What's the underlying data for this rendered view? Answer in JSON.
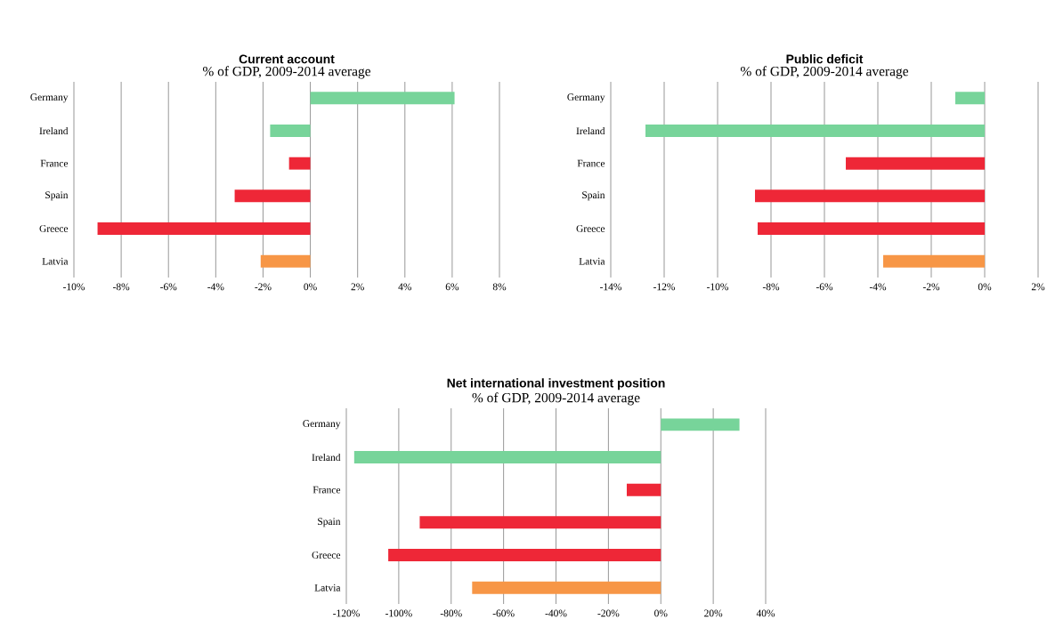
{
  "chart_data": [
    {
      "type": "bar",
      "orientation": "horizontal",
      "title": "Current account",
      "subtitle": "% of GDP, 2009-2014 average",
      "categories": [
        "Germany",
        "Ireland",
        "France",
        "Spain",
        "Greece",
        "Latvia"
      ],
      "values": [
        6.1,
        -1.7,
        -0.9,
        -3.2,
        -9.0,
        -2.1
      ],
      "colors": [
        "#77d49a",
        "#77d49a",
        "#ee2737",
        "#ee2737",
        "#ee2737",
        "#f79646"
      ],
      "xlim": [
        -10,
        8
      ],
      "xticks": [
        {
          "value": -10,
          "label": "-10%"
        },
        {
          "value": -8,
          "label": "-8%"
        },
        {
          "value": -6,
          "label": "-6%"
        },
        {
          "value": -4,
          "label": "-4%"
        },
        {
          "value": -2,
          "label": "-2%"
        },
        {
          "value": 0,
          "label": "0%"
        },
        {
          "value": 2,
          "label": "2%"
        },
        {
          "value": 4,
          "label": "4%"
        },
        {
          "value": 6,
          "label": "6%"
        },
        {
          "value": 8,
          "label": "8%"
        }
      ],
      "grid": "x"
    },
    {
      "type": "bar",
      "orientation": "horizontal",
      "title": "Public deficit",
      "subtitle": "% of GDP, 2009-2014 average",
      "categories": [
        "Germany",
        "Ireland",
        "France",
        "Spain",
        "Greece",
        "Latvia"
      ],
      "values": [
        -1.1,
        -12.7,
        -5.2,
        -8.6,
        -8.5,
        -3.8
      ],
      "colors": [
        "#77d49a",
        "#77d49a",
        "#ee2737",
        "#ee2737",
        "#ee2737",
        "#f79646"
      ],
      "xlim": [
        -14,
        2
      ],
      "xticks": [
        {
          "value": -14,
          "label": "-14%"
        },
        {
          "value": -12,
          "label": "-12%"
        },
        {
          "value": -10,
          "label": "-10%"
        },
        {
          "value": -8,
          "label": "-8%"
        },
        {
          "value": -6,
          "label": "-6%"
        },
        {
          "value": -4,
          "label": "-4%"
        },
        {
          "value": -2,
          "label": "-2%"
        },
        {
          "value": 0,
          "label": "0%"
        },
        {
          "value": 2,
          "label": "2%"
        }
      ],
      "grid": "x"
    },
    {
      "type": "bar",
      "orientation": "horizontal",
      "title": "Net international investment position",
      "subtitle": "% of GDP, 2009-2014 average",
      "categories": [
        "Germany",
        "Ireland",
        "France",
        "Spain",
        "Greece",
        "Latvia"
      ],
      "values": [
        30,
        -117,
        -13,
        -92,
        -104,
        -72
      ],
      "colors": [
        "#77d49a",
        "#77d49a",
        "#ee2737",
        "#ee2737",
        "#ee2737",
        "#f79646"
      ],
      "xlim": [
        -120,
        40
      ],
      "xticks": [
        {
          "value": -120,
          "label": "-120%"
        },
        {
          "value": -100,
          "label": "-100%"
        },
        {
          "value": -80,
          "label": "-80%"
        },
        {
          "value": -60,
          "label": "-60%"
        },
        {
          "value": -40,
          "label": "-40%"
        },
        {
          "value": -20,
          "label": "-20%"
        },
        {
          "value": 0,
          "label": "0%"
        },
        {
          "value": 20,
          "label": "20%"
        },
        {
          "value": 40,
          "label": "40%"
        }
      ],
      "grid": "x"
    }
  ]
}
